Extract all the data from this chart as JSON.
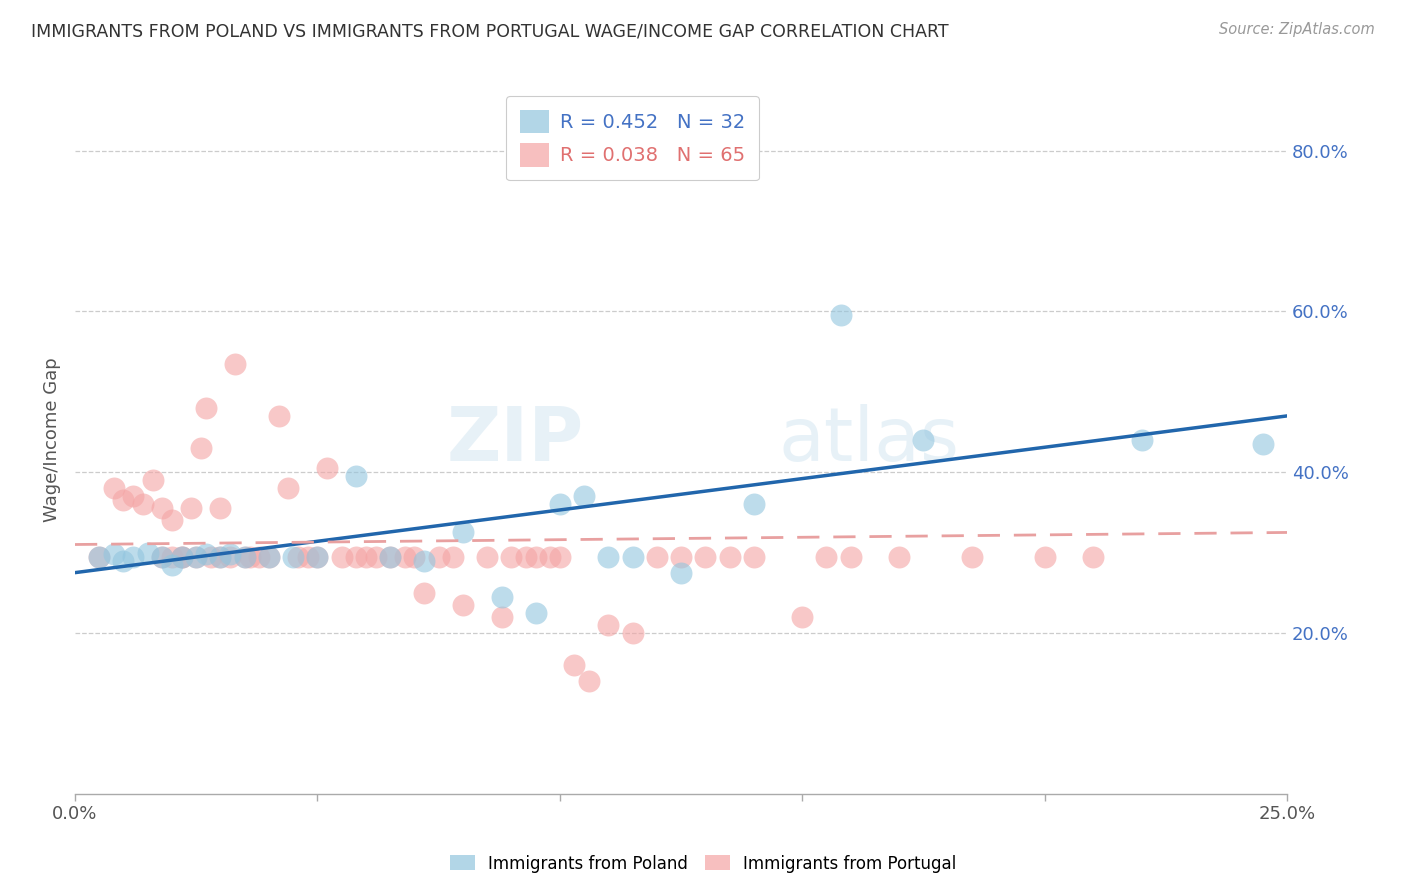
{
  "title": "IMMIGRANTS FROM POLAND VS IMMIGRANTS FROM PORTUGAL WAGE/INCOME GAP CORRELATION CHART",
  "source": "Source: ZipAtlas.com",
  "ylabel": "Wage/Income Gap",
  "xlim": [
    0.0,
    0.25
  ],
  "ylim": [
    0.0,
    0.88
  ],
  "y_ticks": [
    0.2,
    0.4,
    0.6,
    0.8
  ],
  "y_tick_labels": [
    "20.0%",
    "40.0%",
    "60.0%",
    "80.0%"
  ],
  "x_ticks": [
    0.0,
    0.05,
    0.1,
    0.15,
    0.2,
    0.25
  ],
  "x_tick_labels": [
    "0.0%",
    "",
    "",
    "",
    "",
    "25.0%"
  ],
  "poland_color": "#92c5de",
  "portugal_color": "#f4a4a4",
  "poland_line_color": "#2166ac",
  "portugal_line_color": "#e8a0a0",
  "poland_R": 0.452,
  "poland_N": 32,
  "portugal_R": 0.038,
  "portugal_N": 65,
  "legend_label_poland": "Immigrants from Poland",
  "legend_label_portugal": "Immigrants from Portugal",
  "poland_x": [
    0.005,
    0.008,
    0.01,
    0.012,
    0.015,
    0.018,
    0.02,
    0.022,
    0.025,
    0.027,
    0.03,
    0.032,
    0.035,
    0.04,
    0.045,
    0.05,
    0.058,
    0.065,
    0.072,
    0.08,
    0.088,
    0.095,
    0.1,
    0.105,
    0.11,
    0.115,
    0.125,
    0.14,
    0.158,
    0.175,
    0.22,
    0.245
  ],
  "poland_y": [
    0.295,
    0.298,
    0.29,
    0.295,
    0.3,
    0.295,
    0.285,
    0.295,
    0.295,
    0.298,
    0.295,
    0.298,
    0.295,
    0.295,
    0.295,
    0.295,
    0.395,
    0.295,
    0.29,
    0.325,
    0.245,
    0.225,
    0.36,
    0.37,
    0.295,
    0.295,
    0.275,
    0.36,
    0.595,
    0.44,
    0.44,
    0.435
  ],
  "portugal_x": [
    0.005,
    0.008,
    0.01,
    0.012,
    0.014,
    0.016,
    0.018,
    0.018,
    0.02,
    0.02,
    0.022,
    0.022,
    0.024,
    0.025,
    0.026,
    0.027,
    0.028,
    0.03,
    0.03,
    0.032,
    0.033,
    0.035,
    0.036,
    0.038,
    0.04,
    0.042,
    0.044,
    0.046,
    0.048,
    0.05,
    0.052,
    0.055,
    0.058,
    0.06,
    0.062,
    0.065,
    0.068,
    0.07,
    0.072,
    0.075,
    0.078,
    0.08,
    0.085,
    0.088,
    0.09,
    0.093,
    0.095,
    0.098,
    0.1,
    0.103,
    0.106,
    0.11,
    0.115,
    0.12,
    0.125,
    0.13,
    0.135,
    0.14,
    0.15,
    0.155,
    0.16,
    0.17,
    0.185,
    0.2,
    0.21
  ],
  "portugal_y": [
    0.295,
    0.38,
    0.365,
    0.37,
    0.36,
    0.39,
    0.295,
    0.355,
    0.295,
    0.34,
    0.295,
    0.295,
    0.355,
    0.295,
    0.43,
    0.48,
    0.295,
    0.295,
    0.355,
    0.295,
    0.535,
    0.295,
    0.295,
    0.295,
    0.295,
    0.47,
    0.38,
    0.295,
    0.295,
    0.295,
    0.405,
    0.295,
    0.295,
    0.295,
    0.295,
    0.295,
    0.295,
    0.295,
    0.25,
    0.295,
    0.295,
    0.235,
    0.295,
    0.22,
    0.295,
    0.295,
    0.295,
    0.295,
    0.295,
    0.16,
    0.14,
    0.21,
    0.2,
    0.295,
    0.295,
    0.295,
    0.295,
    0.295,
    0.22,
    0.295,
    0.295,
    0.295,
    0.295,
    0.295,
    0.295
  ],
  "poland_line_x0": 0.0,
  "poland_line_y0": 0.275,
  "poland_line_x1": 0.25,
  "poland_line_y1": 0.47,
  "portugal_line_x0": 0.0,
  "portugal_line_y0": 0.31,
  "portugal_line_x1": 0.25,
  "portugal_line_y1": 0.325
}
